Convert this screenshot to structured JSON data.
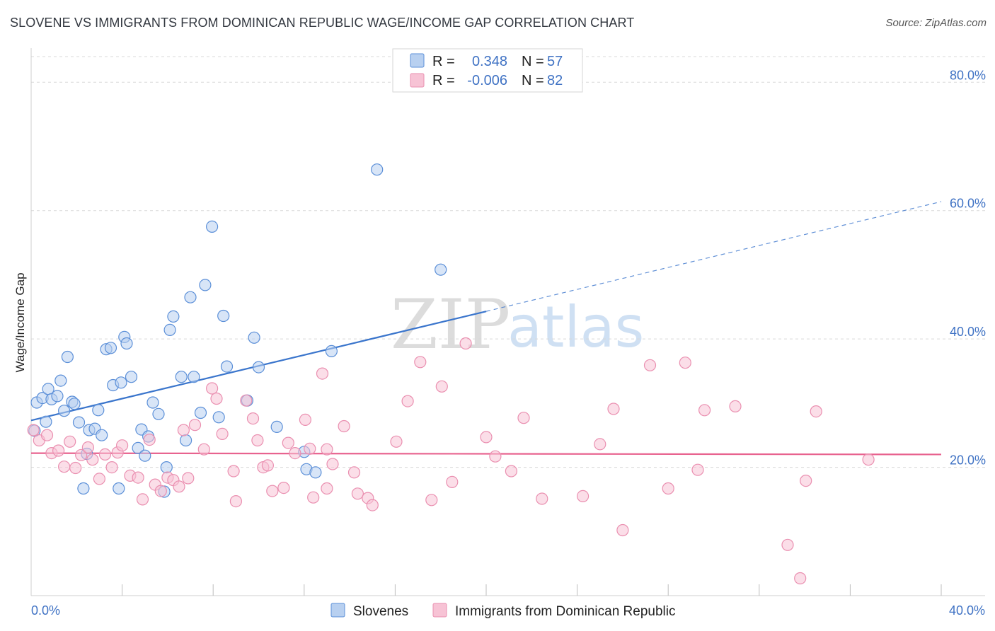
{
  "title": "SLOVENE VS IMMIGRANTS FROM DOMINICAN REPUBLIC WAGE/INCOME GAP CORRELATION CHART",
  "source": "Source: ZipAtlas.com",
  "watermark": {
    "zip": "ZIP",
    "atlas": "atlas"
  },
  "colors": {
    "blue": "#3a75cc",
    "blue_fill": "#b8d0f0",
    "blue_stroke": "#5b8fd8",
    "pink": "#e8638f",
    "pink_fill": "#f7c3d5",
    "pink_stroke": "#ea8fb0",
    "grid": "#d8d8d8",
    "tick_text": "#3f72c4"
  },
  "legend": {
    "rows": [
      {
        "r_label": "R =",
        "r_value": "0.348",
        "n_label": "N =",
        "n_value": "57"
      },
      {
        "r_label": "R =",
        "r_value": "-0.006",
        "n_label": "N =",
        "n_value": "82"
      }
    ]
  },
  "chart_data": {
    "type": "scatter",
    "title": "SLOVENE VS IMMIGRANTS FROM DOMINICAN REPUBLIC WAGE/INCOME GAP CORRELATION CHART",
    "xlabel": "",
    "ylabel": "Wage/Income Gap",
    "xlim": [
      0,
      40
    ],
    "ylim": [
      0,
      84
    ],
    "x_tick_labels": [
      "0.0%",
      "40.0%"
    ],
    "y_ticks": [
      20,
      40,
      60,
      80
    ],
    "y_tick_labels": [
      "20.0%",
      "40.0%",
      "60.0%",
      "80.0%"
    ],
    "grid": true,
    "legend_position": "bottom",
    "series": [
      {
        "name": "Slovenes",
        "color": "#3a75cc",
        "r": 0.348,
        "n": 57,
        "trend": {
          "x0": 0.0,
          "y0": 27.3,
          "x1": 20.0,
          "y1": 44.3,
          "x_dash_end": 40.0,
          "y_dash_end": 61.4
        },
        "points": [
          [
            0.25,
            30.1
          ],
          [
            0.5,
            30.8
          ],
          [
            0.65,
            27.1
          ],
          [
            0.75,
            32.2
          ],
          [
            0.9,
            30.6
          ],
          [
            1.15,
            31.1
          ],
          [
            1.3,
            33.5
          ],
          [
            1.45,
            28.8
          ],
          [
            1.6,
            37.2
          ],
          [
            1.8,
            30.2
          ],
          [
            1.9,
            29.9
          ],
          [
            2.1,
            27.0
          ],
          [
            2.45,
            22.1
          ],
          [
            2.55,
            25.8
          ],
          [
            2.8,
            26.0
          ],
          [
            2.95,
            28.9
          ],
          [
            3.1,
            25.0
          ],
          [
            3.3,
            38.4
          ],
          [
            3.5,
            38.6
          ],
          [
            3.6,
            32.8
          ],
          [
            3.85,
            16.7
          ],
          [
            3.95,
            33.2
          ],
          [
            4.1,
            40.3
          ],
          [
            4.2,
            39.3
          ],
          [
            4.4,
            34.1
          ],
          [
            4.7,
            23.0
          ],
          [
            4.85,
            25.9
          ],
          [
            5.0,
            21.8
          ],
          [
            5.15,
            24.8
          ],
          [
            5.35,
            30.1
          ],
          [
            5.6,
            28.3
          ],
          [
            5.85,
            16.2
          ],
          [
            5.95,
            20.0
          ],
          [
            6.1,
            41.4
          ],
          [
            6.25,
            43.5
          ],
          [
            6.6,
            34.1
          ],
          [
            6.8,
            24.2
          ],
          [
            7.0,
            46.5
          ],
          [
            7.15,
            34.1
          ],
          [
            7.45,
            28.5
          ],
          [
            7.65,
            48.4
          ],
          [
            7.95,
            57.5
          ],
          [
            8.25,
            27.8
          ],
          [
            8.45,
            43.6
          ],
          [
            8.6,
            35.7
          ],
          [
            9.5,
            30.4
          ],
          [
            9.8,
            40.2
          ],
          [
            10.0,
            35.6
          ],
          [
            10.8,
            26.3
          ],
          [
            12.0,
            22.4
          ],
          [
            12.1,
            19.7
          ],
          [
            12.5,
            19.2
          ],
          [
            13.2,
            38.1
          ],
          [
            15.2,
            66.4
          ],
          [
            18.0,
            50.8
          ],
          [
            2.3,
            16.7
          ],
          [
            0.15,
            25.7
          ]
        ]
      },
      {
        "name": "Immigrants from Dominican Republic",
        "color": "#e8638f",
        "r": -0.006,
        "n": 82,
        "trend": {
          "x0": 0.0,
          "y0": 22.2,
          "x1": 40.0,
          "y1": 22.0
        },
        "points": [
          [
            0.1,
            25.8
          ],
          [
            0.35,
            24.2
          ],
          [
            0.7,
            25.0
          ],
          [
            0.9,
            22.2
          ],
          [
            1.2,
            22.6
          ],
          [
            1.45,
            20.1
          ],
          [
            1.7,
            24.0
          ],
          [
            1.95,
            19.9
          ],
          [
            2.2,
            21.9
          ],
          [
            2.5,
            23.1
          ],
          [
            2.7,
            21.2
          ],
          [
            3.0,
            18.2
          ],
          [
            3.25,
            22.0
          ],
          [
            3.55,
            20.0
          ],
          [
            3.8,
            22.3
          ],
          [
            4.0,
            23.4
          ],
          [
            4.35,
            18.7
          ],
          [
            4.7,
            18.4
          ],
          [
            4.9,
            15.0
          ],
          [
            5.2,
            24.3
          ],
          [
            5.45,
            17.3
          ],
          [
            5.7,
            16.3
          ],
          [
            6.0,
            18.4
          ],
          [
            6.25,
            18.0
          ],
          [
            6.5,
            17.0
          ],
          [
            6.7,
            25.8
          ],
          [
            6.9,
            18.3
          ],
          [
            7.2,
            26.6
          ],
          [
            7.6,
            22.8
          ],
          [
            7.95,
            32.3
          ],
          [
            8.15,
            30.7
          ],
          [
            8.4,
            25.2
          ],
          [
            8.9,
            19.4
          ],
          [
            9.0,
            14.7
          ],
          [
            9.45,
            30.4
          ],
          [
            9.75,
            27.6
          ],
          [
            9.95,
            24.2
          ],
          [
            10.2,
            20.0
          ],
          [
            10.4,
            20.3
          ],
          [
            10.6,
            16.3
          ],
          [
            11.1,
            16.8
          ],
          [
            11.3,
            23.8
          ],
          [
            11.6,
            22.2
          ],
          [
            12.05,
            27.4
          ],
          [
            12.25,
            22.9
          ],
          [
            12.4,
            15.3
          ],
          [
            12.8,
            34.6
          ],
          [
            13.0,
            16.7
          ],
          [
            13.25,
            20.5
          ],
          [
            13.75,
            26.4
          ],
          [
            14.2,
            19.2
          ],
          [
            14.35,
            15.9
          ],
          [
            14.8,
            15.2
          ],
          [
            15.0,
            14.1
          ],
          [
            16.05,
            24.0
          ],
          [
            16.55,
            30.3
          ],
          [
            17.1,
            36.4
          ],
          [
            17.6,
            14.9
          ],
          [
            18.05,
            32.6
          ],
          [
            18.5,
            17.7
          ],
          [
            19.1,
            39.3
          ],
          [
            20.0,
            24.7
          ],
          [
            20.4,
            21.7
          ],
          [
            21.1,
            19.4
          ],
          [
            21.65,
            27.7
          ],
          [
            22.45,
            15.1
          ],
          [
            24.25,
            15.5
          ],
          [
            25.0,
            23.6
          ],
          [
            25.6,
            29.1
          ],
          [
            26.0,
            10.2
          ],
          [
            27.2,
            35.9
          ],
          [
            28.0,
            16.7
          ],
          [
            28.75,
            36.3
          ],
          [
            29.3,
            19.6
          ],
          [
            29.6,
            28.9
          ],
          [
            30.95,
            29.5
          ],
          [
            33.25,
            7.9
          ],
          [
            33.8,
            2.7
          ],
          [
            34.05,
            17.9
          ],
          [
            34.5,
            28.7
          ],
          [
            36.8,
            21.2
          ],
          [
            13.0,
            22.8
          ]
        ]
      }
    ]
  }
}
